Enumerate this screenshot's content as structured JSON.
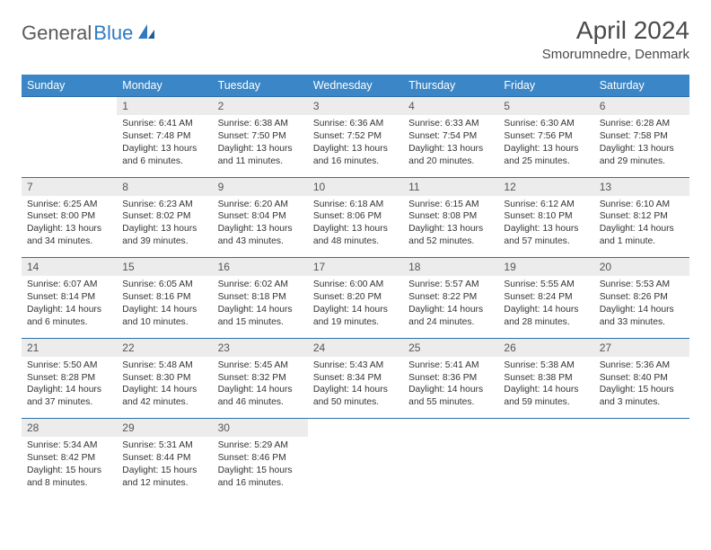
{
  "brand": {
    "name_gray": "General",
    "name_blue": "Blue"
  },
  "title": "April 2024",
  "location": "Smorumnedre, Denmark",
  "colors": {
    "header_bg": "#3b86c6",
    "header_text": "#ffffff",
    "daynum_bg": "#ececec",
    "row_divider": "#2f6fa8",
    "body_text": "#333333",
    "title_text": "#4a4a4a",
    "logo_gray": "#5a5a5a",
    "logo_blue": "#2f7bbf"
  },
  "day_headers": [
    "Sunday",
    "Monday",
    "Tuesday",
    "Wednesday",
    "Thursday",
    "Friday",
    "Saturday"
  ],
  "weeks": [
    {
      "nums": [
        "",
        "1",
        "2",
        "3",
        "4",
        "5",
        "6"
      ],
      "cells": [
        null,
        {
          "sunrise": "6:41 AM",
          "sunset": "7:48 PM",
          "daylight": "13 hours and 6 minutes."
        },
        {
          "sunrise": "6:38 AM",
          "sunset": "7:50 PM",
          "daylight": "13 hours and 11 minutes."
        },
        {
          "sunrise": "6:36 AM",
          "sunset": "7:52 PM",
          "daylight": "13 hours and 16 minutes."
        },
        {
          "sunrise": "6:33 AM",
          "sunset": "7:54 PM",
          "daylight": "13 hours and 20 minutes."
        },
        {
          "sunrise": "6:30 AM",
          "sunset": "7:56 PM",
          "daylight": "13 hours and 25 minutes."
        },
        {
          "sunrise": "6:28 AM",
          "sunset": "7:58 PM",
          "daylight": "13 hours and 29 minutes."
        }
      ]
    },
    {
      "nums": [
        "7",
        "8",
        "9",
        "10",
        "11",
        "12",
        "13"
      ],
      "cells": [
        {
          "sunrise": "6:25 AM",
          "sunset": "8:00 PM",
          "daylight": "13 hours and 34 minutes."
        },
        {
          "sunrise": "6:23 AM",
          "sunset": "8:02 PM",
          "daylight": "13 hours and 39 minutes."
        },
        {
          "sunrise": "6:20 AM",
          "sunset": "8:04 PM",
          "daylight": "13 hours and 43 minutes."
        },
        {
          "sunrise": "6:18 AM",
          "sunset": "8:06 PM",
          "daylight": "13 hours and 48 minutes."
        },
        {
          "sunrise": "6:15 AM",
          "sunset": "8:08 PM",
          "daylight": "13 hours and 52 minutes."
        },
        {
          "sunrise": "6:12 AM",
          "sunset": "8:10 PM",
          "daylight": "13 hours and 57 minutes."
        },
        {
          "sunrise": "6:10 AM",
          "sunset": "8:12 PM",
          "daylight": "14 hours and 1 minute."
        }
      ]
    },
    {
      "nums": [
        "14",
        "15",
        "16",
        "17",
        "18",
        "19",
        "20"
      ],
      "cells": [
        {
          "sunrise": "6:07 AM",
          "sunset": "8:14 PM",
          "daylight": "14 hours and 6 minutes."
        },
        {
          "sunrise": "6:05 AM",
          "sunset": "8:16 PM",
          "daylight": "14 hours and 10 minutes."
        },
        {
          "sunrise": "6:02 AM",
          "sunset": "8:18 PM",
          "daylight": "14 hours and 15 minutes."
        },
        {
          "sunrise": "6:00 AM",
          "sunset": "8:20 PM",
          "daylight": "14 hours and 19 minutes."
        },
        {
          "sunrise": "5:57 AM",
          "sunset": "8:22 PM",
          "daylight": "14 hours and 24 minutes."
        },
        {
          "sunrise": "5:55 AM",
          "sunset": "8:24 PM",
          "daylight": "14 hours and 28 minutes."
        },
        {
          "sunrise": "5:53 AM",
          "sunset": "8:26 PM",
          "daylight": "14 hours and 33 minutes."
        }
      ]
    },
    {
      "nums": [
        "21",
        "22",
        "23",
        "24",
        "25",
        "26",
        "27"
      ],
      "cells": [
        {
          "sunrise": "5:50 AM",
          "sunset": "8:28 PM",
          "daylight": "14 hours and 37 minutes."
        },
        {
          "sunrise": "5:48 AM",
          "sunset": "8:30 PM",
          "daylight": "14 hours and 42 minutes."
        },
        {
          "sunrise": "5:45 AM",
          "sunset": "8:32 PM",
          "daylight": "14 hours and 46 minutes."
        },
        {
          "sunrise": "5:43 AM",
          "sunset": "8:34 PM",
          "daylight": "14 hours and 50 minutes."
        },
        {
          "sunrise": "5:41 AM",
          "sunset": "8:36 PM",
          "daylight": "14 hours and 55 minutes."
        },
        {
          "sunrise": "5:38 AM",
          "sunset": "8:38 PM",
          "daylight": "14 hours and 59 minutes."
        },
        {
          "sunrise": "5:36 AM",
          "sunset": "8:40 PM",
          "daylight": "15 hours and 3 minutes."
        }
      ]
    },
    {
      "nums": [
        "28",
        "29",
        "30",
        "",
        "",
        "",
        ""
      ],
      "cells": [
        {
          "sunrise": "5:34 AM",
          "sunset": "8:42 PM",
          "daylight": "15 hours and 8 minutes."
        },
        {
          "sunrise": "5:31 AM",
          "sunset": "8:44 PM",
          "daylight": "15 hours and 12 minutes."
        },
        {
          "sunrise": "5:29 AM",
          "sunset": "8:46 PM",
          "daylight": "15 hours and 16 minutes."
        },
        null,
        null,
        null,
        null
      ]
    }
  ],
  "labels": {
    "sunrise": "Sunrise: ",
    "sunset": "Sunset: ",
    "daylight": "Daylight: "
  }
}
